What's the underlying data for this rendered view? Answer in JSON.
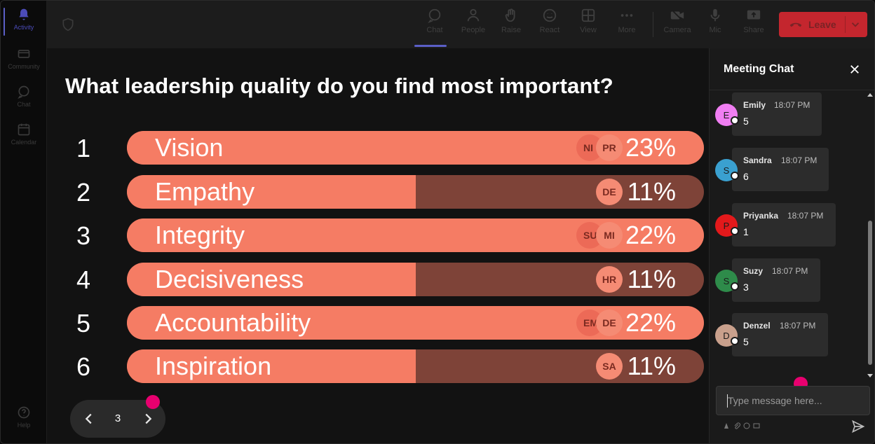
{
  "rail": {
    "items": [
      {
        "label": "Activity",
        "icon": "bell-icon"
      },
      {
        "label": "Community",
        "icon": "community-icon"
      },
      {
        "label": "Chat",
        "icon": "chat-icon"
      },
      {
        "label": "Calendar",
        "icon": "calendar-icon"
      }
    ],
    "help": {
      "label": "Help",
      "icon": "help-icon"
    }
  },
  "toolbar": {
    "chat": "Chat",
    "people": "People",
    "raise": "Raise",
    "react": "React",
    "view": "View",
    "more": "More",
    "camera": "Camera",
    "mic": "Mic",
    "share": "Share",
    "leave": "Leave"
  },
  "poll": {
    "question": "What leadership quality do you find most important?",
    "options": [
      {
        "rank": "1",
        "label": "Vision",
        "percent_text": "23%",
        "fill": 1.0,
        "voters": [
          "NI",
          "PR"
        ]
      },
      {
        "rank": "2",
        "label": "Empathy",
        "percent_text": "11%",
        "fill": 0.5,
        "voters": [
          "DE"
        ]
      },
      {
        "rank": "3",
        "label": "Integrity",
        "percent_text": "22%",
        "fill": 1.0,
        "voters": [
          "SU",
          "MI"
        ]
      },
      {
        "rank": "4",
        "label": "Decisiveness",
        "percent_text": "11%",
        "fill": 0.5,
        "voters": [
          "HR"
        ]
      },
      {
        "rank": "5",
        "label": "Accountability",
        "percent_text": "22%",
        "fill": 1.0,
        "voters": [
          "EM",
          "DE"
        ]
      },
      {
        "rank": "6",
        "label": "Inspiration",
        "percent_text": "11%",
        "fill": 0.5,
        "voters": [
          "SA"
        ]
      }
    ]
  },
  "pager": {
    "page": "3"
  },
  "chat": {
    "title": "Meeting Chat",
    "input_placeholder": "Type message here...",
    "messages": [
      {
        "initial": "E",
        "name": "Emily",
        "time": "18:07 PM",
        "text": "5",
        "color": "#f07ef2"
      },
      {
        "initial": "S",
        "name": "Sandra",
        "time": "18:07 PM",
        "text": "6",
        "color": "#3aa0d0"
      },
      {
        "initial": "P",
        "name": "Priyanka",
        "time": "18:07 PM",
        "text": "1",
        "color": "#e3191b"
      },
      {
        "initial": "S",
        "name": "Suzy",
        "time": "18:07 PM",
        "text": "3",
        "color": "#2e8b4a"
      },
      {
        "initial": "D",
        "name": "Denzel",
        "time": "18:07 PM",
        "text": "5",
        "color": "#c9a08c"
      }
    ]
  },
  "colors": {
    "bar_fill": "#f57c64",
    "bar_track": "#7e4338",
    "leave_button": "#c4262e",
    "accent": "#5b5fc7",
    "pointer_dot": "#e8006f"
  }
}
